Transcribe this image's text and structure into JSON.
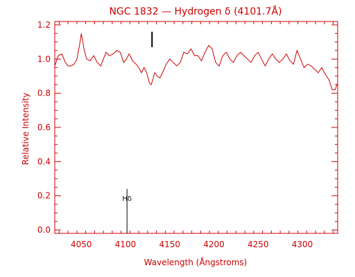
{
  "chart_data": {
    "type": "line",
    "title": "NGC 1832 — Hydrogen δ (4101.7Å)",
    "xlabel": "Wavelength (Ångstroms)",
    "ylabel": "Relative Intensity",
    "xlim": [
      4020,
      4340
    ],
    "ylim": [
      -0.02,
      1.22
    ],
    "x_ticks": [
      4050,
      4100,
      4150,
      4200,
      4250,
      4300
    ],
    "y_ticks": [
      0.0,
      0.2,
      0.4,
      0.6,
      0.8,
      1.0,
      1.2
    ],
    "x_tick_labels": [
      "4050",
      "4100",
      "4150",
      "4200",
      "4250",
      "4300"
    ],
    "y_tick_labels": [
      "0.0",
      "0.2",
      "0.4",
      "0.6",
      "0.8",
      "1.0",
      "1.2"
    ],
    "grid": false,
    "colors": {
      "axes": "#cc0000",
      "series": "#cc0000",
      "marker": "#000000"
    },
    "series": [
      {
        "x": [
          4020,
          4024,
          4028,
          4032,
          4035,
          4038,
          4042,
          4045,
          4048,
          4050,
          4053,
          4056,
          4060,
          4064,
          4068,
          4072,
          4075,
          4078,
          4082,
          4086,
          4090,
          4094,
          4098,
          4101,
          4104,
          4108,
          4112,
          4115,
          4118,
          4121,
          4124,
          4127,
          4129,
          4131,
          4133,
          4136,
          4139,
          4142,
          4146,
          4150,
          4154,
          4158,
          4162,
          4166,
          4170,
          4174,
          4178,
          4182,
          4186,
          4190,
          4194,
          4198,
          4202,
          4206,
          4210,
          4214,
          4218,
          4222,
          4226,
          4230,
          4234,
          4238,
          4242,
          4246,
          4250,
          4254,
          4258,
          4262,
          4266,
          4270,
          4274,
          4278,
          4282,
          4286,
          4290,
          4294,
          4298,
          4302,
          4306,
          4310,
          4314,
          4318,
          4322,
          4326,
          4330,
          4334,
          4337,
          4340
        ],
        "y": [
          0.96,
          1.02,
          1.03,
          0.98,
          0.96,
          0.96,
          0.97,
          1.0,
          1.08,
          1.15,
          1.06,
          1.0,
          0.99,
          1.02,
          0.98,
          0.96,
          1.0,
          1.04,
          1.02,
          1.03,
          1.05,
          1.04,
          0.98,
          1.0,
          1.03,
          0.99,
          0.97,
          0.95,
          0.92,
          0.95,
          0.92,
          0.86,
          0.85,
          0.88,
          0.92,
          0.9,
          0.89,
          0.92,
          0.97,
          1.0,
          0.98,
          0.96,
          0.98,
          1.04,
          1.03,
          1.06,
          1.02,
          1.02,
          0.99,
          1.04,
          1.08,
          1.06,
          0.98,
          0.96,
          1.02,
          1.04,
          1.0,
          0.98,
          1.02,
          1.04,
          1.02,
          1.0,
          0.98,
          1.02,
          1.04,
          1.0,
          0.96,
          1.0,
          1.03,
          1.0,
          0.98,
          1.0,
          1.03,
          0.99,
          0.97,
          1.05,
          1.0,
          0.95,
          0.97,
          0.96,
          0.94,
          0.92,
          0.95,
          0.91,
          0.88,
          0.82,
          0.82,
          0.86
        ]
      }
    ],
    "annotations": [
      {
        "label": "Hδ",
        "x": 4101.7,
        "y_bottom": -0.02,
        "y_top": 0.24
      },
      {
        "label": "",
        "x": 4130,
        "y_bottom": 1.07,
        "y_top": 1.16
      }
    ]
  }
}
